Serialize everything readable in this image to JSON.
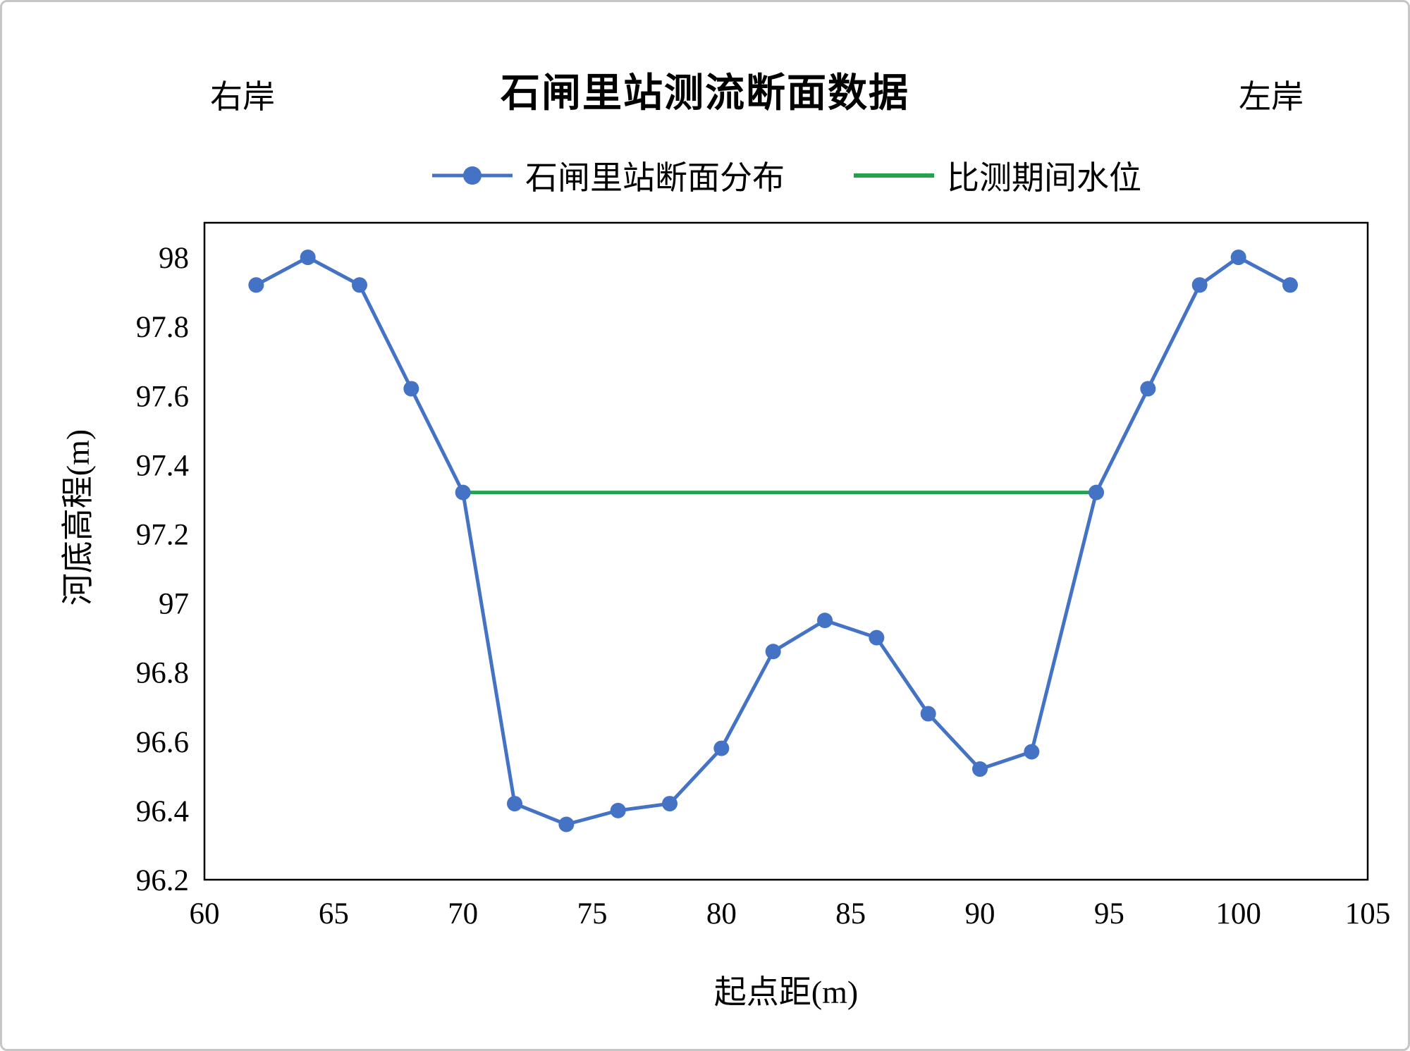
{
  "page": {
    "title": "石闸里站测流断面数据",
    "right_bank_label": "右岸",
    "left_bank_label": "左岸"
  },
  "axes": {
    "xlabel": "起点距(m)",
    "ylabel": "河底高程(m)"
  },
  "chart_data": {
    "type": "line",
    "title": "石闸里站测流断面数据",
    "xlabel": "起点距(m)",
    "ylabel": "河底高程(m)",
    "xlim": [
      60,
      105
    ],
    "ylim": [
      96.2,
      98.1
    ],
    "x_ticks": [
      60,
      65,
      70,
      75,
      80,
      85,
      90,
      95,
      100,
      105
    ],
    "y_ticks": [
      96.2,
      96.4,
      96.6,
      96.8,
      97,
      97.2,
      97.4,
      97.6,
      97.8,
      98
    ],
    "grid": false,
    "legend_position": "top-center",
    "series": [
      {
        "name": "石闸里站断面分布",
        "color": "#4472C4",
        "marker": "circle",
        "x": [
          62,
          64,
          66,
          68,
          70,
          72,
          74,
          76,
          78,
          80,
          82,
          84,
          86,
          88,
          90,
          92,
          94.5,
          96.5,
          98.5,
          100,
          102
        ],
        "y": [
          97.92,
          98.0,
          97.92,
          97.62,
          97.32,
          96.42,
          96.36,
          96.4,
          96.42,
          96.58,
          96.86,
          96.95,
          96.9,
          96.68,
          96.52,
          96.57,
          97.32,
          97.62,
          97.92,
          98.0,
          97.92
        ]
      },
      {
        "name": "比测期间水位",
        "color": "#22A24C",
        "marker": "none",
        "x": [
          70,
          94.5
        ],
        "y": [
          97.32,
          97.32
        ]
      }
    ]
  }
}
